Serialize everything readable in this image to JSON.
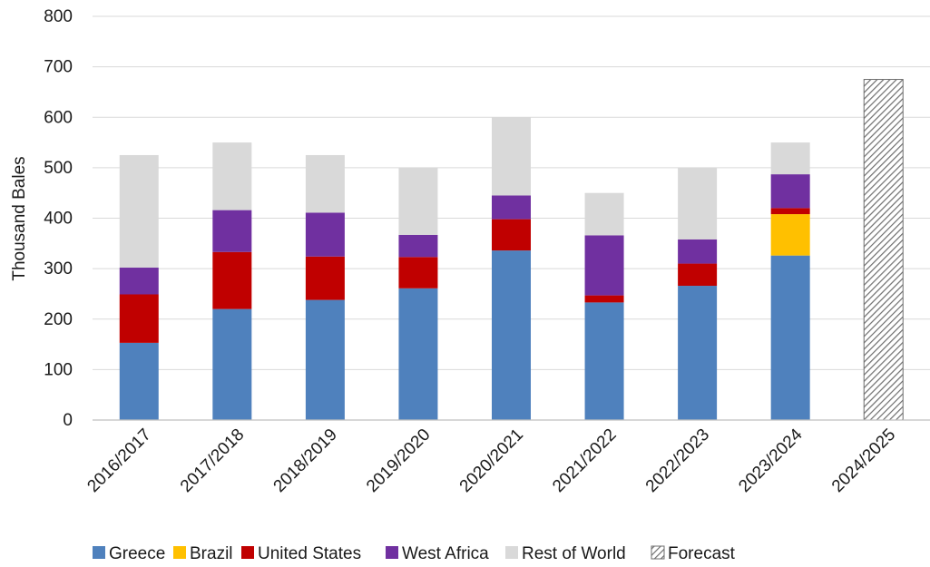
{
  "chart_data": {
    "type": "bar",
    "stacked": true,
    "title": "",
    "xlabel": "",
    "ylabel": "Thousand Bales",
    "ylim": [
      0,
      800
    ],
    "yticks": [
      0,
      100,
      200,
      300,
      400,
      500,
      600,
      700,
      800
    ],
    "grid": true,
    "legend_position": "bottom",
    "categories": [
      "2016/2017",
      "2017/2018",
      "2018/2019",
      "2019/2020",
      "2020/2021",
      "2021/2022",
      "2022/2023",
      "2023/2024",
      "2024/2025"
    ],
    "series": [
      {
        "name": "Greece",
        "color": "#4f81bd",
        "values": [
          153,
          220,
          238,
          261,
          336,
          233,
          266,
          326,
          null
        ]
      },
      {
        "name": "Brazil",
        "color": "#ffc000",
        "values": [
          0,
          0,
          0,
          0,
          0,
          0,
          0,
          82,
          null
        ]
      },
      {
        "name": "United States",
        "color": "#c00000",
        "values": [
          96,
          113,
          86,
          62,
          62,
          14,
          44,
          12,
          null
        ]
      },
      {
        "name": "West Africa",
        "color": "#7030a0",
        "values": [
          53,
          83,
          87,
          44,
          47,
          119,
          48,
          67,
          null
        ]
      },
      {
        "name": "Rest of World",
        "color": "#d9d9d9",
        "values": [
          223,
          134,
          114,
          133,
          155,
          84,
          142,
          63,
          null
        ]
      },
      {
        "name": "Forecast",
        "color": "#808080",
        "pattern": "diagonal-hatch",
        "values": [
          null,
          null,
          null,
          null,
          null,
          null,
          null,
          null,
          675
        ]
      }
    ]
  }
}
